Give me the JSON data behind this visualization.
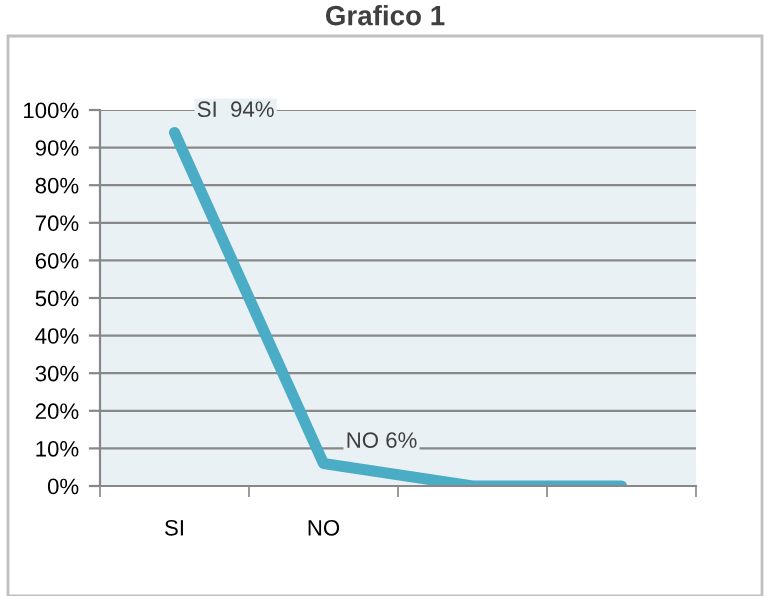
{
  "chart_data": {
    "type": "line",
    "title": "Grafico 1",
    "categories": [
      "SI",
      "NO",
      null,
      null
    ],
    "series": [
      {
        "color": "#4bacc6",
        "values": [
          94,
          6,
          0,
          0
        ],
        "value_labels": [
          "SI  94%",
          "NO 6%",
          null,
          null
        ]
      }
    ],
    "ylim": [
      0,
      100
    ],
    "yticks": [
      {
        "value": 0,
        "label": "0%"
      },
      {
        "value": 10,
        "label": "10%"
      },
      {
        "value": 20,
        "label": "20%"
      },
      {
        "value": 30,
        "label": "30%"
      },
      {
        "value": 40,
        "label": "40%"
      },
      {
        "value": 50,
        "label": "50%"
      },
      {
        "value": 60,
        "label": "60%"
      },
      {
        "value": 70,
        "label": "70%"
      },
      {
        "value": 80,
        "label": "80%"
      },
      {
        "value": 90,
        "label": "90%"
      },
      {
        "value": 100,
        "label": "100%"
      }
    ],
    "grid": "y",
    "marker": "none",
    "line_style": "solid",
    "legend": false
  }
}
